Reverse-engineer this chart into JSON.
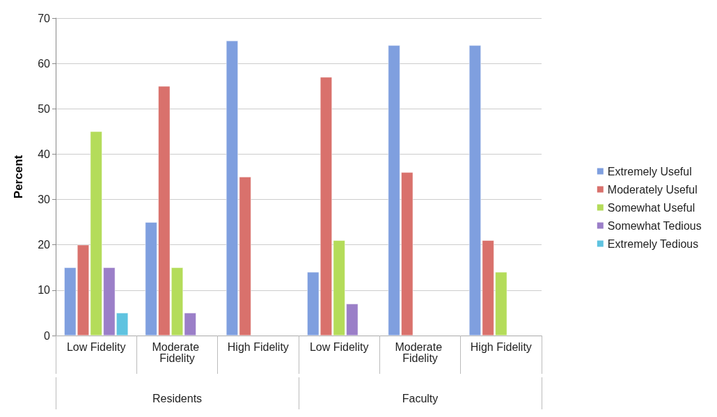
{
  "chart_data": {
    "type": "bar",
    "ylabel": "Percent",
    "categories": [
      "Low Fidelity",
      "Moderate Fidelity",
      "High Fidelity",
      "Low Fidelity",
      "Moderate Fidelity",
      "High Fidelity"
    ],
    "annotations": [
      "Residents",
      "Faculty"
    ],
    "series": [
      {
        "name": "Extremely Useful",
        "color": "#7f9fdf",
        "values": [
          15,
          25,
          65,
          14,
          64,
          64
        ]
      },
      {
        "name": "Moderately Useful",
        "color": "#d9716c",
        "values": [
          20,
          55,
          35,
          57,
          36,
          21
        ]
      },
      {
        "name": "Somewhat Useful",
        "color": "#b4dc5a",
        "values": [
          45,
          15,
          null,
          21,
          null,
          14
        ]
      },
      {
        "name": "Somewhat Tedious",
        "color": "#9b7fc8",
        "values": [
          15,
          5,
          null,
          7,
          null,
          null
        ]
      },
      {
        "name": "Extremely Tedious",
        "color": "#5fc3e0",
        "values": [
          5,
          null,
          null,
          null,
          null,
          null
        ]
      }
    ],
    "ylim": [
      0,
      70
    ],
    "yticks": [
      0,
      10,
      20,
      30,
      40,
      50,
      60,
      70
    ],
    "grid": "y",
    "legend": "right"
  }
}
